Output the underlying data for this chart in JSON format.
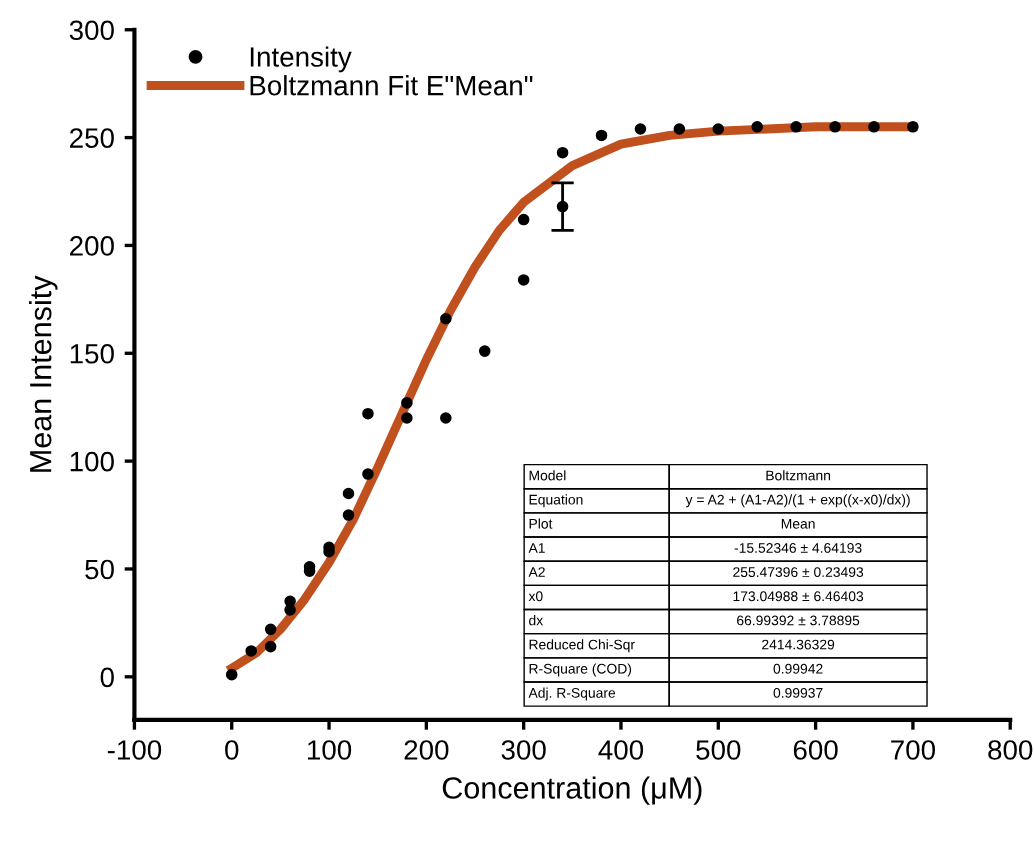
{
  "chart_data": {
    "type": "scatter",
    "xlabel": "Concentration (μM)",
    "ylabel": "Mean Intensity",
    "xlim": [
      -100,
      800
    ],
    "xticks": [
      -100,
      0,
      100,
      200,
      300,
      400,
      500,
      600,
      700,
      800
    ],
    "ylim": [
      -20,
      300
    ],
    "yticks": [
      0,
      50,
      100,
      150,
      200,
      250,
      300
    ],
    "grid": false,
    "legend": "top left",
    "series": [
      {
        "name": "Intensity",
        "color": "#000000",
        "marker": "circle",
        "x": [
          0,
          20,
          40,
          40,
          60,
          60,
          80,
          80,
          100,
          100,
          120,
          120,
          140,
          140,
          180,
          180,
          220,
          220,
          260,
          300,
          300,
          340,
          340,
          380,
          420,
          460,
          500,
          540,
          580,
          620,
          660,
          700
        ],
        "values": [
          1,
          12,
          14,
          22,
          31,
          35,
          49,
          51,
          58,
          60,
          75,
          85,
          94,
          122,
          127,
          120,
          120,
          166,
          151,
          184,
          212,
          218,
          243,
          251,
          254,
          254,
          254,
          255,
          255,
          255,
          255,
          255
        ],
        "errors": [
          null,
          null,
          null,
          null,
          null,
          null,
          null,
          null,
          null,
          null,
          null,
          null,
          null,
          null,
          null,
          null,
          null,
          null,
          null,
          null,
          null,
          11,
          null,
          null,
          null,
          null,
          null,
          null,
          null,
          null,
          null,
          null
        ]
      },
      {
        "name": "Boltzmann Fit E\"Mean\"",
        "type": "line",
        "color": "#c0501e",
        "marker": "none",
        "line_style": "solid",
        "x": [
          0,
          25,
          50,
          75,
          100,
          125,
          150,
          175,
          200,
          225,
          250,
          275,
          300,
          350,
          400,
          450,
          500,
          600,
          700
        ],
        "values": [
          4,
          11,
          22,
          36,
          53,
          73,
          97,
          122,
          147,
          170,
          190,
          207,
          220,
          237,
          247,
          251,
          253,
          255,
          255
        ]
      }
    ],
    "annotations": [
      "Model",
      "Boltzmann",
      "Equation",
      "y = A2 + (A1-A2)/(1 + exp((x-x0)/dx))",
      "Plot",
      "Mean",
      "A1",
      "-15.52346 ± 4.64193",
      "A2",
      "255.47396 ± 0.23493",
      "x0",
      "173.04988 ± 6.46403",
      "dx",
      "66.99392 ± 3.78895",
      "Reduced Chi-Sqr",
      "2414.36329",
      "R-Square (COD)",
      "0.99942",
      "Adj. R-Square",
      "0.99937"
    ]
  }
}
